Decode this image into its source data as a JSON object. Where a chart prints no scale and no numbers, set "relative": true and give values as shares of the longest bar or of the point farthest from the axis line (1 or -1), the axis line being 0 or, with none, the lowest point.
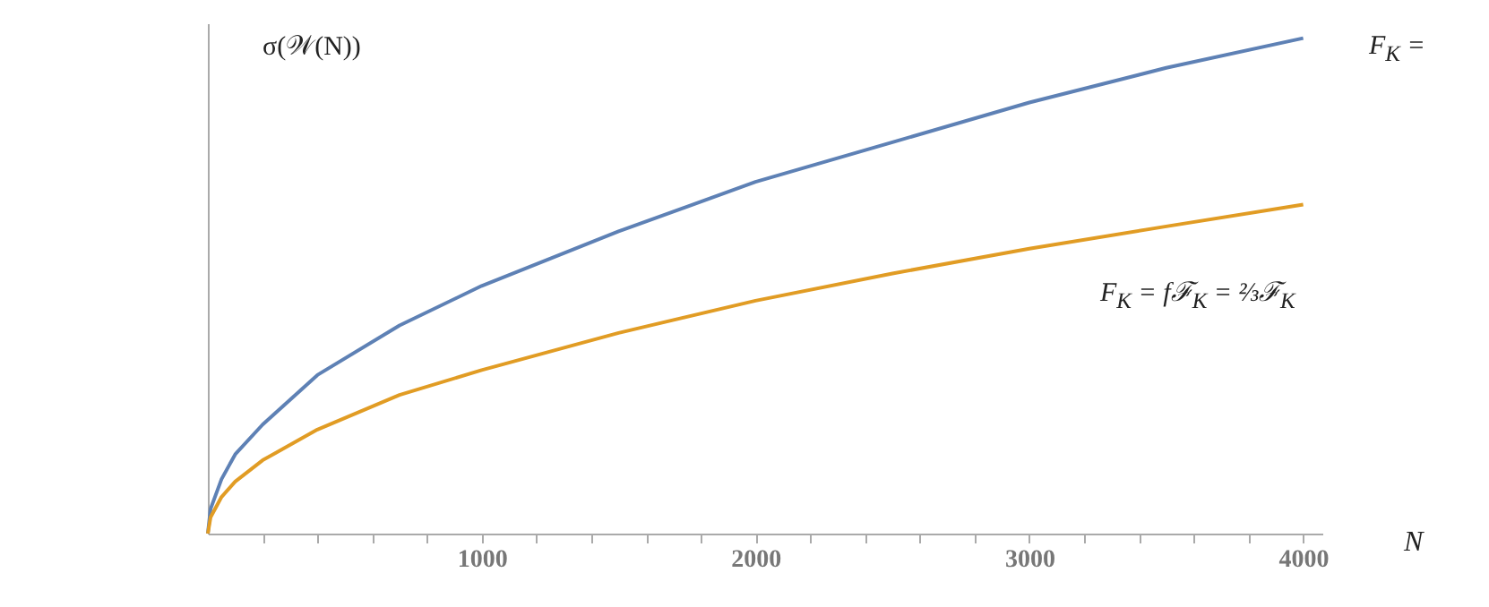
{
  "chart_data": {
    "type": "line",
    "relative": true,
    "xlabel": "N",
    "ylabel": "σ(𝒲(N))",
    "x": [
      0,
      10,
      50,
      100,
      200,
      400,
      700,
      1000,
      1500,
      2000,
      2500,
      3000,
      3500,
      4000
    ],
    "series": [
      {
        "color": "#5e81b5",
        "values": [
          0,
          0.05,
          0.11,
          0.16,
          0.22,
          0.32,
          0.42,
          0.5,
          0.61,
          0.71,
          0.79,
          0.87,
          0.94,
          1
        ]
      },
      {
        "color": "#e19c24",
        "values": [
          0,
          0.033,
          0.074,
          0.105,
          0.148,
          0.21,
          0.28,
          0.33,
          0.405,
          0.47,
          0.525,
          0.575,
          0.62,
          0.664
        ]
      }
    ],
    "xlim": [
      0,
      4070
    ],
    "xticks": [
      {
        "value": 200,
        "label": null
      },
      {
        "value": 400,
        "label": null
      },
      {
        "value": 600,
        "label": null
      },
      {
        "value": 800,
        "label": null
      },
      1000,
      {
        "value": 1200,
        "label": null
      },
      {
        "value": 1400,
        "label": null
      },
      {
        "value": 1600,
        "label": null
      },
      {
        "value": 1800,
        "label": null
      },
      2000,
      {
        "value": 2200,
        "label": null
      },
      {
        "value": 2400,
        "label": null
      },
      {
        "value": 2600,
        "label": null
      },
      {
        "value": 2800,
        "label": null
      },
      3000,
      {
        "value": 3200,
        "label": null
      },
      {
        "value": 3400,
        "label": null
      },
      {
        "value": 3600,
        "label": null
      },
      {
        "value": 3800,
        "label": null
      },
      4000
    ],
    "annotations": [
      "F$_{K}$ =",
      "F$_{K}$ =  fℱ$_{K}$ = ⅔ℱ$_{K}$"
    ]
  }
}
